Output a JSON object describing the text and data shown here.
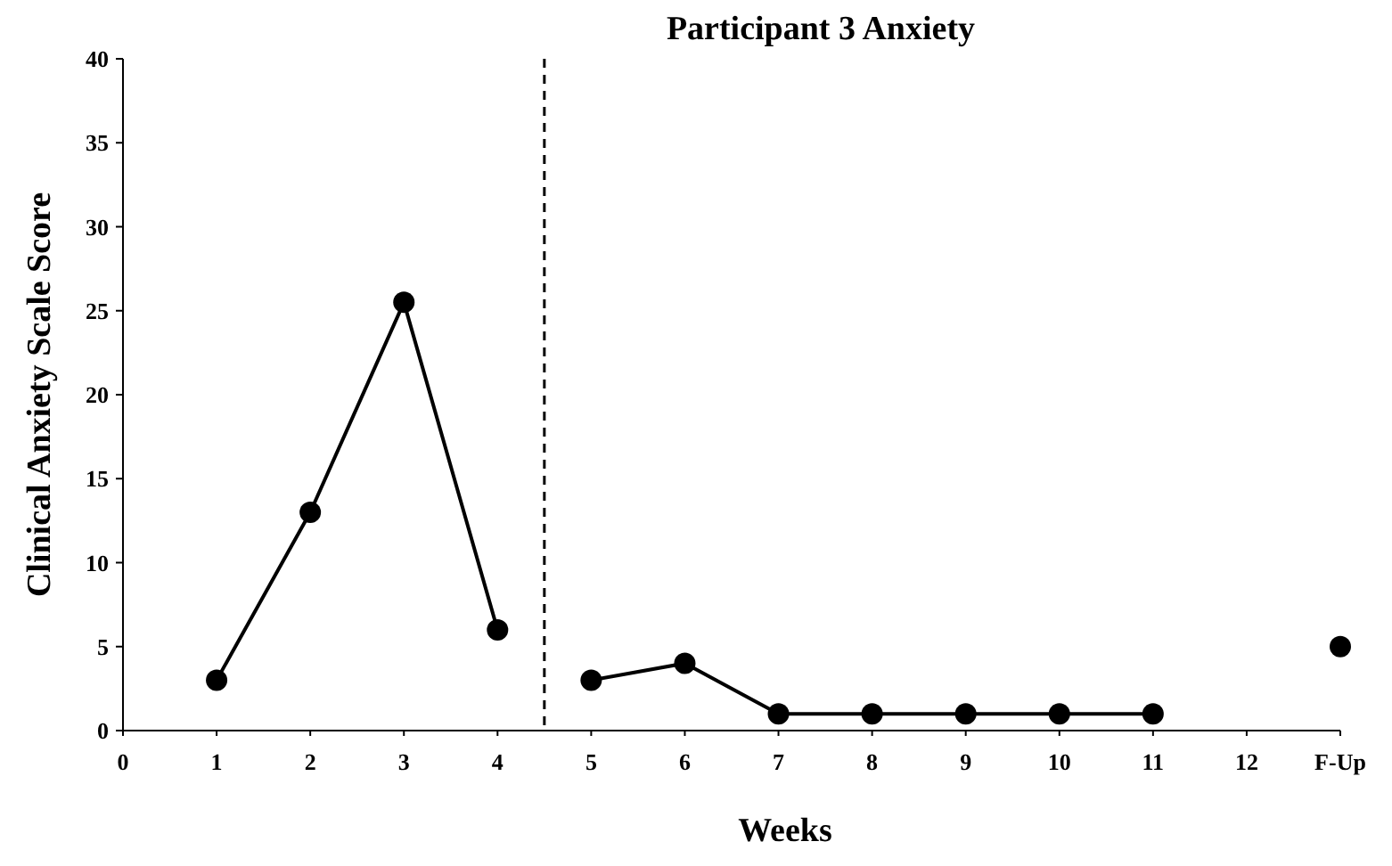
{
  "chart_data": {
    "type": "line",
    "title": "Participant 3 Anxiety",
    "xlabel": "Weeks",
    "ylabel": "Clinical Anxiety Scale Score",
    "xlim": [
      0,
      13
    ],
    "xticks": [
      0,
      1,
      2,
      3,
      4,
      5,
      6,
      7,
      8,
      9,
      10,
      11,
      12,
      {
        "value": 13,
        "label": "F-Up"
      }
    ],
    "ylim": [
      0,
      40
    ],
    "yticks": [
      0,
      5,
      10,
      15,
      20,
      25,
      30,
      35,
      40
    ],
    "series": [
      {
        "color": "#000000",
        "x": [
          1,
          2,
          3,
          4
        ],
        "values": [
          3,
          13,
          25.5,
          6
        ]
      },
      {
        "color": "#000000",
        "x": [
          5,
          6,
          7,
          8,
          9,
          10,
          11
        ],
        "values": [
          3,
          4,
          1,
          1,
          1,
          1,
          1
        ]
      },
      {
        "type": "scatter",
        "color": "#000000",
        "x": [
          13
        ],
        "values": [
          5
        ]
      }
    ],
    "ref_lines": [
      {
        "axis": "x",
        "value": 4.5,
        "line_style": "dashed",
        "color": "#000000"
      }
    ],
    "marker": "circle",
    "line_style": "solid",
    "grid": false
  }
}
